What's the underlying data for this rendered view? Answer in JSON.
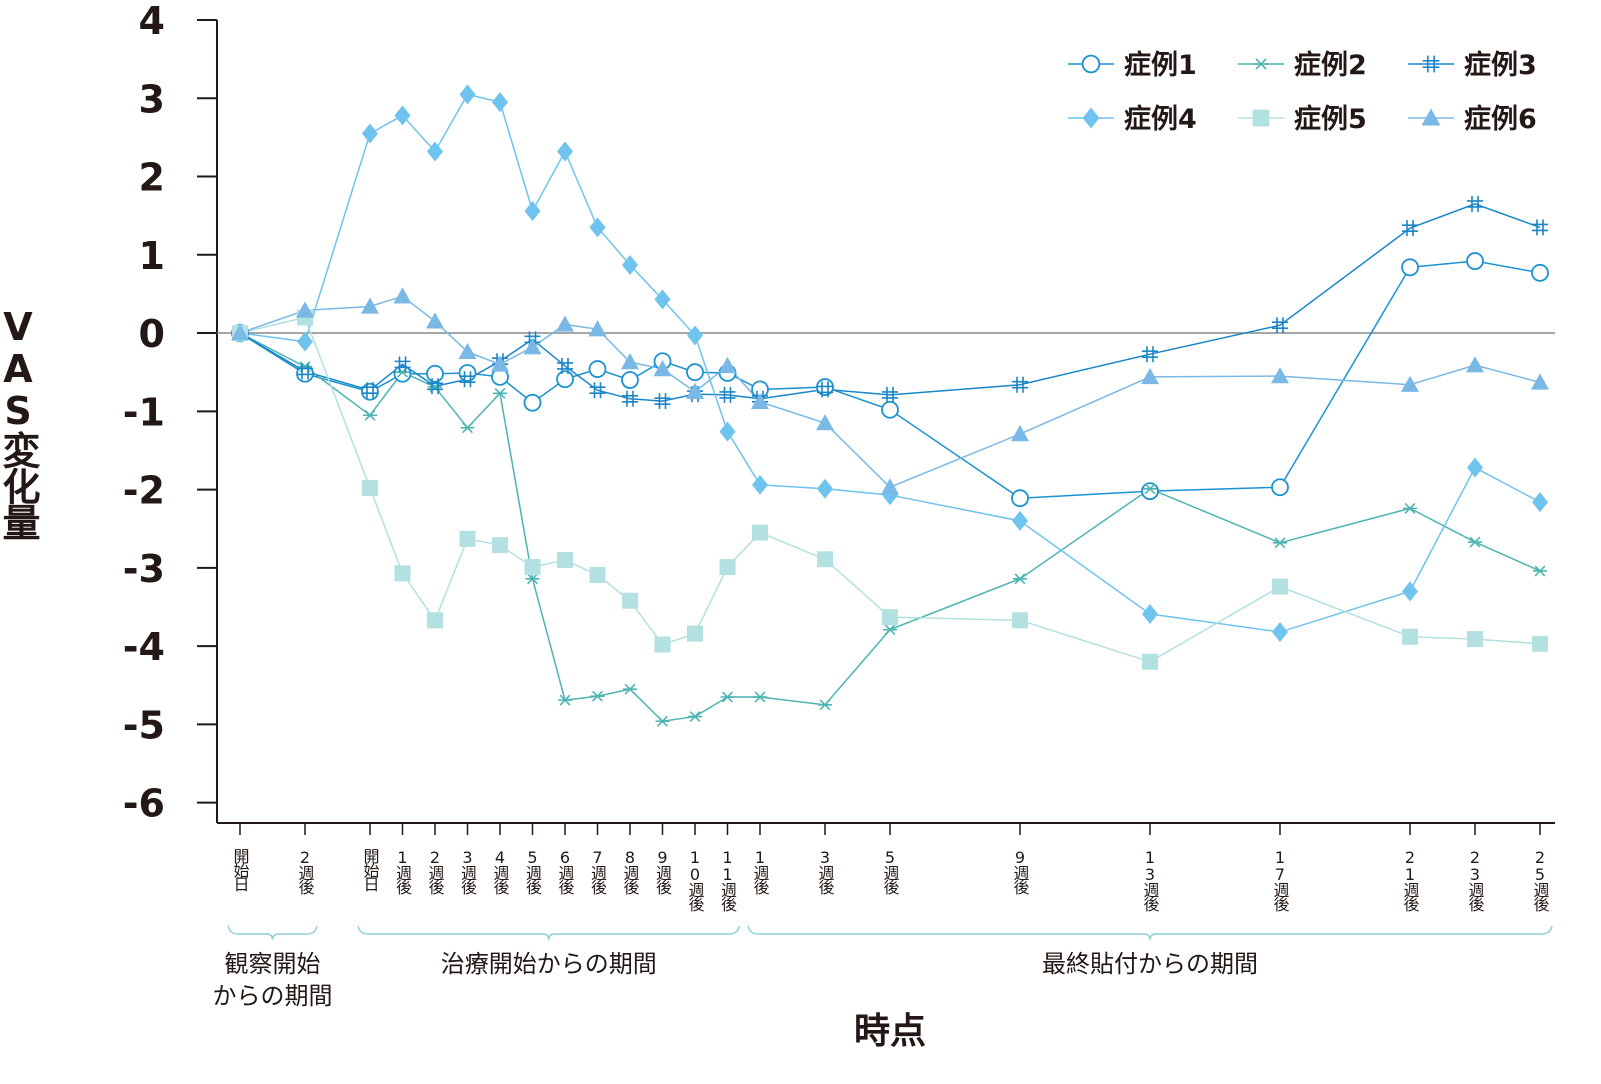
{
  "chart_data": {
    "type": "line",
    "x_title": "時点",
    "y_title": "VAS変化量",
    "categories": [
      "開始日",
      "2週後",
      "開始日",
      "1週後",
      "2週後",
      "3週後",
      "4週後",
      "5週後",
      "6週後",
      "7週後",
      "8週後",
      "9週後",
      "10週後",
      "11週後",
      "1週後",
      "3週後",
      "5週後",
      "9週後",
      "13週後",
      "17週後",
      "21週後",
      "23週後",
      "25週後"
    ],
    "groups": [
      [
        "観察開始",
        "からの期間"
      ],
      [
        "治療開始からの期間"
      ],
      [
        "最終貼付からの期間"
      ]
    ],
    "ylim": [
      -6.26,
      4
    ],
    "yticks": [
      -6,
      -5,
      -4,
      -3,
      -2,
      -1,
      0,
      1,
      2,
      3,
      4
    ],
    "legend": "top-right",
    "series": [
      {
        "name": "症例1",
        "color": "#1a93d0",
        "marker": "circle",
        "values": [
          0,
          -0.52,
          -0.75,
          -0.52,
          -0.52,
          -0.51,
          -0.56,
          -0.89,
          -0.59,
          -0.46,
          -0.6,
          -0.36,
          -0.5,
          -0.51,
          -0.72,
          -0.69,
          -0.98,
          -2.11,
          -2.02,
          -1.97,
          0.84,
          0.92,
          0.77
        ]
      },
      {
        "name": "症例2",
        "color": "#4db3b3",
        "marker": "asterisk",
        "values": [
          0,
          -0.43,
          -1.05,
          -0.5,
          -0.69,
          -1.21,
          -0.77,
          -3.14,
          -4.69,
          -4.64,
          -4.55,
          -4.96,
          -4.9,
          -4.65,
          -4.65,
          -4.75,
          -3.79,
          -3.14,
          -1.99,
          -2.68,
          -2.24,
          -2.67,
          -3.04
        ]
      },
      {
        "name": "症例3",
        "color": "#1a86c8",
        "marker": "hash",
        "values": [
          0,
          -0.49,
          -0.73,
          -0.4,
          -0.68,
          -0.59,
          -0.36,
          -0.08,
          -0.42,
          -0.73,
          -0.84,
          -0.87,
          -0.78,
          -0.79,
          -0.84,
          -0.72,
          -0.79,
          -0.66,
          -0.27,
          0.1,
          1.34,
          1.65,
          1.35
        ]
      },
      {
        "name": "症例4",
        "color": "#6ec3ef",
        "marker": "diamond",
        "values": [
          0,
          -0.11,
          2.55,
          2.78,
          2.32,
          3.05,
          2.95,
          1.56,
          2.32,
          1.35,
          0.87,
          0.43,
          -0.03,
          -1.26,
          -1.94,
          -1.99,
          -2.07,
          -2.4,
          -3.59,
          -3.82,
          -3.3,
          -1.72,
          -2.16
        ]
      },
      {
        "name": "症例5",
        "color": "#b3e0e0",
        "marker": "square",
        "values": [
          0,
          0.2,
          -1.98,
          -3.07,
          -3.67,
          -2.63,
          -2.71,
          -2.99,
          -2.9,
          -3.09,
          -3.42,
          -3.98,
          -3.84,
          -2.99,
          -2.55,
          -2.89,
          -3.63,
          -3.67,
          -4.2,
          -3.24,
          -3.88,
          -3.91,
          -3.97
        ]
      },
      {
        "name": "症例6",
        "color": "#7ab8e6",
        "marker": "triangle",
        "values": [
          0,
          0.29,
          0.34,
          0.47,
          0.15,
          -0.24,
          -0.4,
          -0.18,
          0.11,
          0.05,
          -0.37,
          -0.46,
          -0.75,
          -0.42,
          -0.88,
          -1.15,
          -1.97,
          -1.29,
          -0.56,
          -0.55,
          -0.66,
          -0.41,
          -0.63
        ]
      }
    ]
  }
}
